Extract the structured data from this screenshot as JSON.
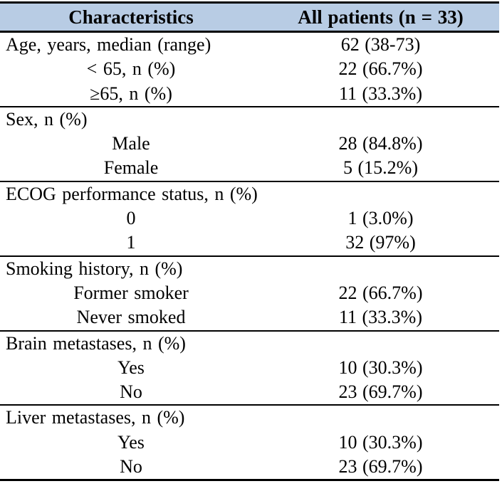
{
  "meta": {
    "description": "Baseline patient characteristics table",
    "header_bg": "#b8cce4",
    "border_color": "#000000",
    "text_color": "#000000"
  },
  "table": {
    "header": {
      "characteristics": "Characteristics",
      "all_patients": "All patients (n = 33)"
    },
    "sections": [
      {
        "rows": [
          {
            "label": "Age, years, median (range)",
            "value": "62 (38-73)"
          },
          {
            "label": "< 65, n (%)",
            "value": "22 (66.7%)"
          },
          {
            "label": "≥65, n (%)",
            "value": "11 (33.3%)"
          }
        ]
      },
      {
        "rows": [
          {
            "label": "Sex, n (%)",
            "value": ""
          },
          {
            "label": "Male",
            "value": "28 (84.8%)"
          },
          {
            "label": "Female",
            "value": "5 (15.2%)"
          }
        ]
      },
      {
        "rows": [
          {
            "label": "ECOG performance status, n (%)",
            "value": ""
          },
          {
            "label": "0",
            "value": "1 (3.0%)"
          },
          {
            "label": "1",
            "value": "32 (97%)"
          }
        ]
      },
      {
        "rows": [
          {
            "label": "Smoking history, n (%)",
            "value": ""
          },
          {
            "label": "Former smoker",
            "value": "22 (66.7%)"
          },
          {
            "label": "Never smoked",
            "value": "11 (33.3%)"
          }
        ]
      },
      {
        "rows": [
          {
            "label": "Brain metastases, n (%)",
            "value": ""
          },
          {
            "label": "Yes",
            "value": "10 (30.3%)"
          },
          {
            "label": "No",
            "value": "23 (69.7%)"
          }
        ]
      },
      {
        "rows": [
          {
            "label": "Liver metastases, n (%)",
            "value": ""
          },
          {
            "label": "Yes",
            "value": "10 (30.3%)"
          },
          {
            "label": "No",
            "value": "23 (69.7%)"
          }
        ]
      }
    ]
  }
}
